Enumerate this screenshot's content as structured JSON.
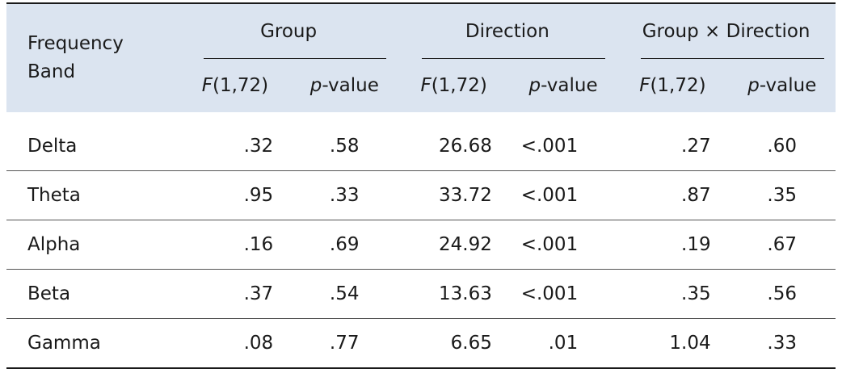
{
  "header": {
    "band_label_line1": "Frequency",
    "band_label_line2": "Band",
    "groups": [
      {
        "label": "Group"
      },
      {
        "label": "Direction"
      },
      {
        "label": "Group × Direction"
      }
    ],
    "f_label_italic": "F",
    "f_label_rest": "(1,72)",
    "p_label_italic": "p",
    "p_label_rest": "-value"
  },
  "rows": [
    {
      "band": "Delta",
      "values": [
        ".32",
        ".58",
        "26.68",
        "<.001",
        ".27",
        ".60"
      ]
    },
    {
      "band": "Theta",
      "values": [
        ".95",
        ".33",
        "33.72",
        "<.001",
        ".87",
        ".35"
      ]
    },
    {
      "band": "Alpha",
      "values": [
        ".16",
        ".69",
        "24.92",
        "<.001",
        ".19",
        ".67"
      ]
    },
    {
      "band": "Beta",
      "values": [
        ".37",
        ".54",
        "13.63",
        "<.001",
        ".35",
        ".56"
      ]
    },
    {
      "band": "Gamma",
      "values": [
        ".08",
        ".77",
        "6.65",
        ".01",
        "1.04",
        ".33"
      ]
    }
  ],
  "colors": {
    "header_background": "#dbe4f0",
    "rule": "#1a1a1a"
  }
}
